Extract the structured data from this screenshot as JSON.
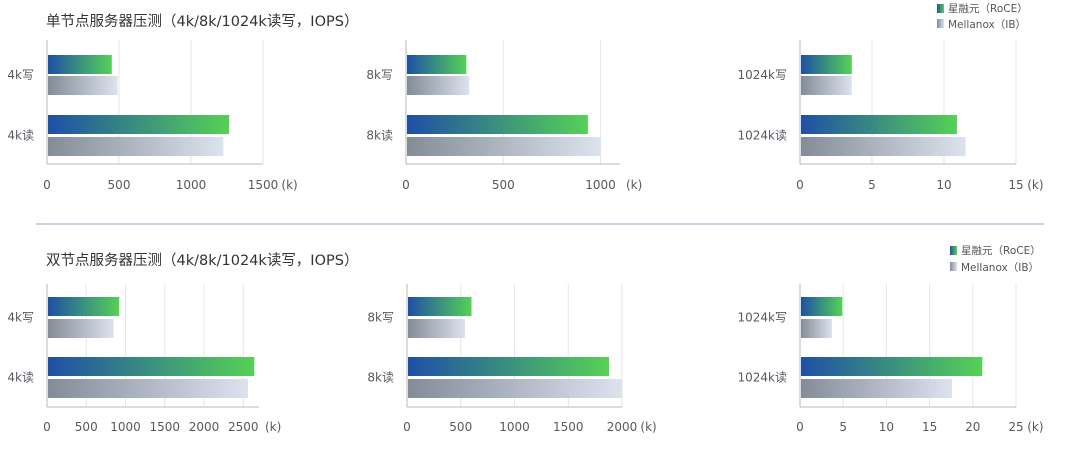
{
  "sections": [
    {
      "title": "单节点服务器压测（4k/8k/1024k读写，IOPS）",
      "legend": [
        "星融元（RoCE）",
        "Mellanox（IB）"
      ]
    },
    {
      "title": "双节点服务器压测（4k/8k/1024k读写，IOPS）",
      "legend": [
        "星融元（RoCE）",
        "Mellanox（IB）"
      ]
    }
  ],
  "colors": {
    "roce_start": "#1f4fa6",
    "roce_end": "#56d156",
    "ib_start": "#838c97",
    "ib_end": "#dde3ee",
    "grid": "#e6e6e6",
    "axis": "#b8b8b8",
    "divider": "#b8c5e0",
    "text": "#555a60",
    "title": "#333333"
  },
  "chart_data": [
    {
      "type": "bar",
      "orientation": "horizontal",
      "categories": [
        "4k写",
        "4k读"
      ],
      "series": [
        {
          "name": "星融元（RoCE）",
          "values": [
            450,
            1265
          ]
        },
        {
          "name": "Mellanox（IB）",
          "values": [
            490,
            1225
          ]
        }
      ],
      "ticks": [
        0,
        500,
        1000,
        1500
      ],
      "xlim": [
        0,
        1500
      ],
      "unit": "(k)",
      "tick_labels": [
        "0",
        "500",
        "1000",
        "1500"
      ]
    },
    {
      "type": "bar",
      "orientation": "horizontal",
      "categories": [
        "8k写",
        "8k读"
      ],
      "series": [
        {
          "name": "星融元（RoCE）",
          "values": [
            310,
            935
          ]
        },
        {
          "name": "Mellanox（IB）",
          "values": [
            325,
            1000
          ]
        }
      ],
      "ticks": [
        0,
        500,
        1000
      ],
      "xlim": [
        0,
        1100
      ],
      "unit": "(k)",
      "tick_labels": [
        "0",
        "500",
        "1000"
      ]
    },
    {
      "type": "bar",
      "orientation": "horizontal",
      "categories": [
        "1024k写",
        "1024k读"
      ],
      "series": [
        {
          "name": "星融元（RoCE）",
          "values": [
            3.6,
            10.9
          ]
        },
        {
          "name": "Mellanox（IB）",
          "values": [
            3.6,
            11.5
          ]
        }
      ],
      "ticks": [
        0,
        5,
        10,
        15
      ],
      "xlim": [
        0,
        15
      ],
      "unit": "(k)",
      "tick_labels": [
        "0",
        "5",
        "10",
        "15"
      ]
    },
    {
      "type": "bar",
      "orientation": "horizontal",
      "categories": [
        "4k写",
        "4k读"
      ],
      "series": [
        {
          "name": "星融元（RoCE）",
          "values": [
            920,
            2640
          ]
        },
        {
          "name": "Mellanox（IB）",
          "values": [
            850,
            2560
          ]
        }
      ],
      "ticks": [
        0,
        500,
        1000,
        1500,
        2000,
        2500
      ],
      "xlim": [
        0,
        2700
      ],
      "unit": "(k)",
      "tick_labels": [
        "0",
        "500",
        "1000",
        "1500",
        "2000",
        "2500"
      ]
    },
    {
      "type": "bar",
      "orientation": "horizontal",
      "categories": [
        "8k写",
        "8k读"
      ],
      "series": [
        {
          "name": "星融元（RoCE）",
          "values": [
            600,
            1880
          ]
        },
        {
          "name": "Mellanox（IB）",
          "values": [
            540,
            2000
          ]
        }
      ],
      "ticks": [
        0,
        500,
        1000,
        1500,
        2000
      ],
      "xlim": [
        0,
        2000
      ],
      "unit": "(k)",
      "tick_labels": [
        "0",
        "500",
        "1000",
        "1500",
        "2000"
      ]
    },
    {
      "type": "bar",
      "orientation": "horizontal",
      "categories": [
        "1024k写",
        "1024k读"
      ],
      "series": [
        {
          "name": "星融元（RoCE）",
          "values": [
            4.9,
            21.1
          ]
        },
        {
          "name": "Mellanox（IB）",
          "values": [
            3.7,
            17.6
          ]
        }
      ],
      "ticks": [
        0,
        5,
        10,
        15,
        20,
        25
      ],
      "xlim": [
        0,
        25
      ],
      "unit": "(k)",
      "tick_labels": [
        "0",
        "5",
        "10",
        "15",
        "20",
        "25"
      ]
    }
  ]
}
